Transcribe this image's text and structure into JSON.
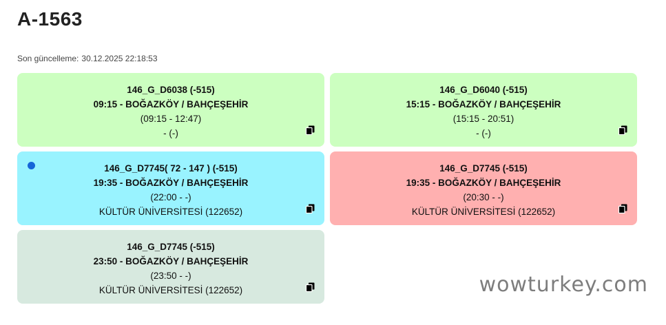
{
  "title": "A-1563",
  "last_update": {
    "label": "Son güncelleme:",
    "value": "30.12.2025 22:18:53"
  },
  "cards": [
    {
      "line1": "146_G_D6038 (-515)",
      "line2": "09:15 - BOĞAZKÖY / BAHÇEŞEHİR",
      "line3": "(09:15 - 12:47)",
      "line4": "- (-)",
      "color": "#ccffc0",
      "copy_icon": "copy-icon"
    },
    {
      "line1": "146_G_D6040 (-515)",
      "line2": "15:15 - BOĞAZKÖY / BAHÇEŞEHİR",
      "line3": "(15:15 - 20:51)",
      "line4": "- (-)",
      "color": "#ccffc0",
      "copy_icon": "copy-icon"
    },
    {
      "line1": "146_G_D7745( 72 - 147 ) (-515)",
      "line2": "19:35 - BOĞAZKÖY / BAHÇEŞEHİR",
      "line3": "(22:00 - -)",
      "line4": "KÜLTÜR ÜNİVERSİTESİ (122652)",
      "color": "#99f3ff",
      "active_dot_color": "#1565d8",
      "copy_icon": "copy-icon"
    },
    {
      "line1": "146_G_D7745 (-515)",
      "line2": "19:35 - BOĞAZKÖY / BAHÇEŞEHİR",
      "line3": "(20:30 - -)",
      "line4": "KÜLTÜR ÜNİVERSİTESİ (122652)",
      "color": "#ffb0b0",
      "copy_icon": "copy-icon"
    },
    {
      "line1": "146_G_D7745 (-515)",
      "line2": "23:50 - BOĞAZKÖY / BAHÇEŞEHİR",
      "line3": "(23:50 - -)",
      "line4": "KÜLTÜR ÜNİVERSİTESİ (122652)",
      "color": "#d7e9df",
      "copy_icon": "copy-icon"
    }
  ],
  "watermark": "wowturkey.com"
}
